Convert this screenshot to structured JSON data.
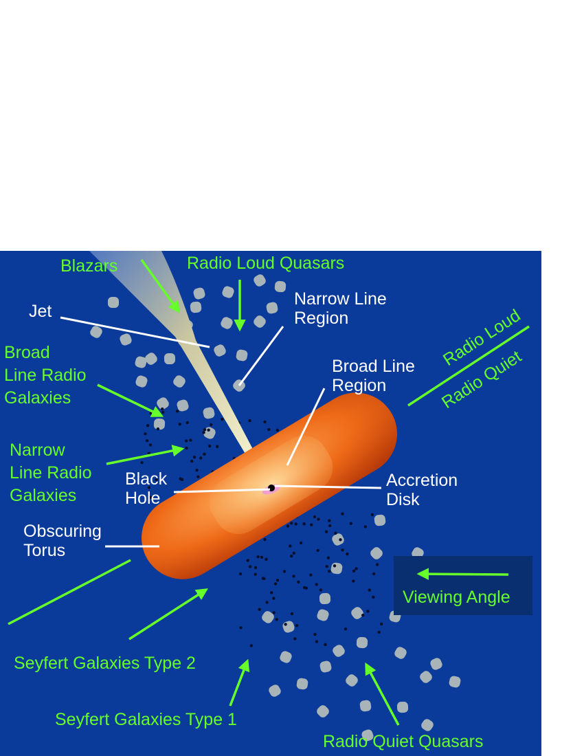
{
  "colors": {
    "background": "#0a3a9a",
    "green_label": "#66ff2a",
    "white_label": "#ffffff",
    "torus": "#e8641a",
    "cloud": "#a8b4b8",
    "viewing_box": "#0a2f70"
  },
  "labels": {
    "blazars": "Blazars",
    "radio_loud_quasars": "Radio Loud Quasars",
    "jet": "Jet",
    "narrow_line_region": [
      "Narrow Line",
      "Region"
    ],
    "broad_line_region": [
      "Broad Line",
      "Region"
    ],
    "broad_line_radio_galaxies": [
      "Broad",
      "Line Radio",
      "Galaxies"
    ],
    "narrow_line_radio_galaxies": [
      "Narrow",
      "Line Radio",
      "Galaxies"
    ],
    "black_hole": [
      "Black",
      "Hole"
    ],
    "accretion_disk": [
      "Accretion",
      "Disk"
    ],
    "obscuring_torus": [
      "Obscuring",
      "Torus"
    ],
    "radio_loud": "Radio Loud",
    "radio_quiet": "Radio Quiet",
    "viewing_angle": "Viewing Angle",
    "seyfert_type_2": "Seyfert Galaxies Type 2",
    "seyfert_type_1": "Seyfert Galaxies Type 1",
    "radio_quiet_quasars": "Radio Quiet Quasars"
  }
}
